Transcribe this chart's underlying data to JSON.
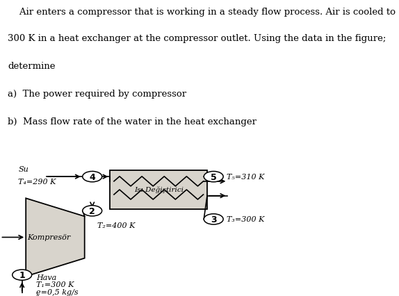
{
  "bg_color": "#bebebe",
  "diagram_bg": "#b0aca4",
  "text_lines": [
    "    Air enters a compressor that is working in a steady flow process. Air is cooled to",
    "300 K in a heat exchanger at the compressor outlet. Using the data in the figure;",
    "determine",
    "a)  The power required by compressor",
    "b)  Mass flow rate of the water in the heat exchanger"
  ],
  "node1_label": "1",
  "node2_label": "2",
  "node3_label": "3",
  "node4_label": "4",
  "node5_label": "5",
  "su_label": "Su",
  "T4_label": "T₄=290 K",
  "T5_label": "T₅=310 K",
  "T2_label": "T₂=400 K",
  "T3_label": "T₃=300 K",
  "compressor_label": "Kompresör",
  "hx_label": "Isı Değiştirici",
  "hava_label": "Hava",
  "T1_label": "T₁=300 K",
  "mdot_label": "ḛ=0,5 kg/s"
}
